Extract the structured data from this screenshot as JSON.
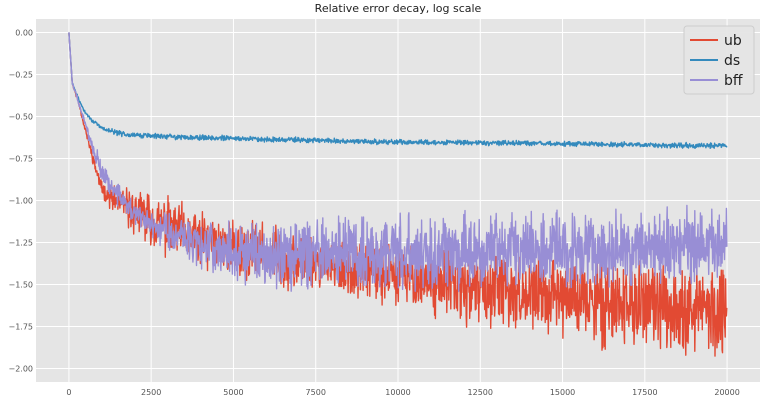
{
  "chart_data": {
    "type": "line",
    "title": "Relative error decay, log scale",
    "xlabel": "",
    "ylabel": "",
    "xlim": [
      -1000,
      21000
    ],
    "ylim": [
      -2.08,
      0.08
    ],
    "grid": true,
    "legend_position": "top-right",
    "x_ticks": [
      0,
      2500,
      5000,
      7500,
      10000,
      12500,
      15000,
      17500,
      20000
    ],
    "y_ticks": [
      0.0,
      -0.25,
      -0.5,
      -0.75,
      -1.0,
      -1.25,
      -1.5,
      -1.75,
      -2.0
    ],
    "x_tick_labels": [
      "0",
      "2500",
      "5000",
      "7500",
      "10000",
      "12500",
      "15000",
      "17500",
      "20000"
    ],
    "y_tick_labels": [
      "0.00",
      "−0.25",
      "−0.50",
      "−0.75",
      "−1.00",
      "−1.25",
      "−1.50",
      "−1.75",
      "−2.00"
    ],
    "series": [
      {
        "name": "ub",
        "color": "#e24a33",
        "x": [
          0,
          100,
          300,
          500,
          800,
          1000,
          1300,
          1600,
          2000,
          2500,
          3000,
          3500,
          4000,
          5000,
          6000,
          7000,
          8000,
          9000,
          10000,
          11000,
          12000,
          13000,
          14000,
          15000,
          16000,
          17000,
          18000,
          19000,
          20000
        ],
        "y": [
          0.0,
          -0.3,
          -0.42,
          -0.58,
          -0.8,
          -0.93,
          -0.99,
          -1.02,
          -1.07,
          -1.12,
          -1.16,
          -1.2,
          -1.24,
          -1.28,
          -1.32,
          -1.36,
          -1.39,
          -1.42,
          -1.45,
          -1.48,
          -1.52,
          -1.54,
          -1.56,
          -1.58,
          -1.6,
          -1.62,
          -1.63,
          -1.64,
          -1.65
        ],
        "noise": [
          0.0,
          0.01,
          0.02,
          0.03,
          0.04,
          0.05,
          0.08,
          0.12,
          0.15,
          0.18,
          0.2,
          0.2,
          0.2,
          0.2,
          0.2,
          0.2,
          0.2,
          0.2,
          0.2,
          0.22,
          0.25,
          0.25,
          0.25,
          0.28,
          0.3,
          0.3,
          0.3,
          0.3,
          0.3
        ]
      },
      {
        "name": "ds",
        "color": "#348abd",
        "x": [
          0,
          100,
          300,
          500,
          800,
          1000,
          1500,
          2000,
          3000,
          4000,
          5000,
          6000,
          7000,
          8000,
          9000,
          10000,
          12000,
          14000,
          16000,
          18000,
          20000
        ],
        "y": [
          0.0,
          -0.3,
          -0.4,
          -0.48,
          -0.54,
          -0.57,
          -0.6,
          -0.61,
          -0.62,
          -0.625,
          -0.63,
          -0.635,
          -0.64,
          -0.645,
          -0.65,
          -0.652,
          -0.656,
          -0.66,
          -0.665,
          -0.67,
          -0.675
        ],
        "noise": [
          0.0,
          0.01,
          0.01,
          0.012,
          0.015,
          0.017,
          0.018,
          0.018,
          0.018,
          0.018,
          0.018,
          0.018,
          0.018,
          0.018,
          0.018,
          0.018,
          0.018,
          0.018,
          0.018,
          0.018,
          0.018
        ]
      },
      {
        "name": "bff",
        "color": "#988ed5",
        "x": [
          0,
          100,
          300,
          500,
          800,
          1000,
          1300,
          1600,
          2000,
          2500,
          3000,
          3500,
          4000,
          5000,
          6000,
          8000,
          10000,
          12000,
          14000,
          16000,
          18000,
          20000
        ],
        "y": [
          0.0,
          -0.3,
          -0.42,
          -0.55,
          -0.72,
          -0.83,
          -0.92,
          -0.99,
          -1.07,
          -1.14,
          -1.18,
          -1.22,
          -1.26,
          -1.3,
          -1.32,
          -1.32,
          -1.3,
          -1.3,
          -1.3,
          -1.28,
          -1.27,
          -1.26
        ],
        "noise": [
          0.0,
          0.01,
          0.02,
          0.04,
          0.06,
          0.07,
          0.08,
          0.08,
          0.09,
          0.1,
          0.12,
          0.14,
          0.16,
          0.2,
          0.23,
          0.24,
          0.25,
          0.25,
          0.25,
          0.25,
          0.25,
          0.25
        ]
      }
    ]
  }
}
